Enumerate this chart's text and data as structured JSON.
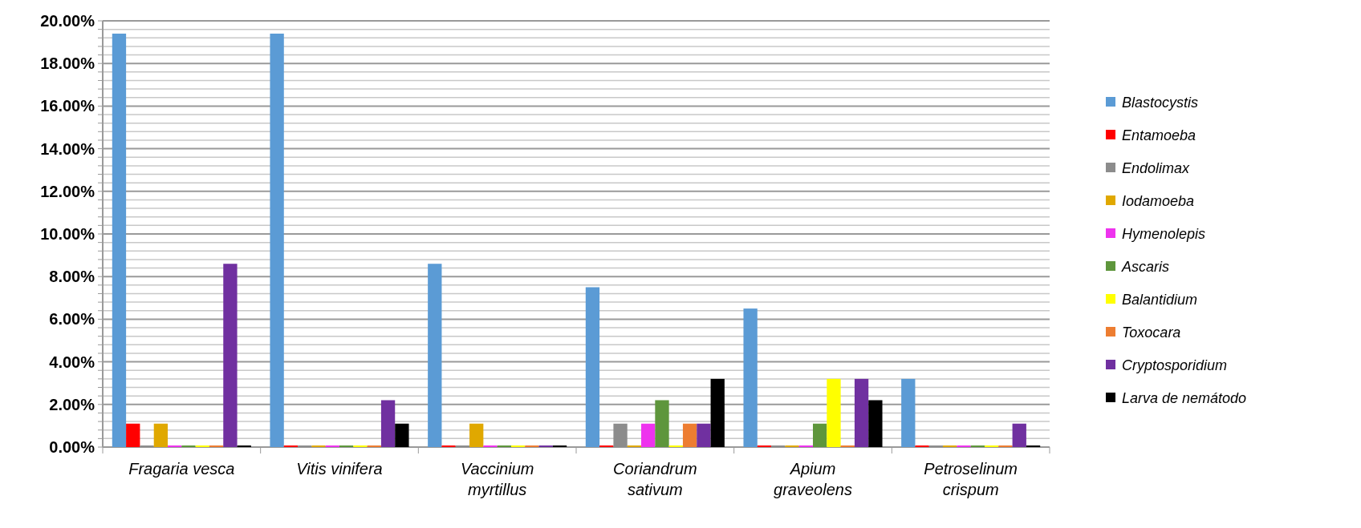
{
  "chart_data": {
    "type": "bar",
    "categories": [
      "Fragaria vesca",
      "Vitis vinifera",
      "Vaccinium myrtillus",
      "Coriandrum sativum",
      "Apium graveolens",
      "Petroselinum crispum"
    ],
    "series": [
      {
        "name": "Blastocystis",
        "color": "#5b9bd5",
        "values": [
          19.4,
          19.4,
          8.6,
          7.5,
          6.5,
          3.2
        ]
      },
      {
        "name": "Entamoeba",
        "color": "#ff0000",
        "values": [
          1.1,
          0,
          0,
          0,
          0,
          0
        ]
      },
      {
        "name": "Endolimax",
        "color": "#8c8c8c",
        "values": [
          0,
          0,
          0,
          1.1,
          0,
          0
        ]
      },
      {
        "name": "Iodamoeba",
        "color": "#e0a800",
        "values": [
          1.1,
          0,
          1.1,
          0,
          0,
          0
        ]
      },
      {
        "name": "Hymenolepis",
        "color": "#ee33ee",
        "values": [
          0,
          0,
          0,
          1.1,
          0,
          0
        ]
      },
      {
        "name": "Ascaris",
        "color": "#5e963c",
        "values": [
          0,
          0,
          0,
          2.2,
          1.1,
          0
        ]
      },
      {
        "name": "Balantidium",
        "color": "#ffff00",
        "values": [
          0,
          0,
          0,
          0,
          3.2,
          0
        ]
      },
      {
        "name": "Toxocara",
        "color": "#ed7d31",
        "values": [
          0,
          0,
          0,
          1.1,
          0,
          0
        ]
      },
      {
        "name": "Cryptosporidium",
        "color": "#7030a0",
        "values": [
          8.6,
          2.2,
          0,
          1.1,
          3.2,
          1.1
        ]
      },
      {
        "name": "Larva de nemátodo",
        "color": "#000000",
        "values": [
          0,
          1.1,
          0,
          3.2,
          2.2,
          0
        ]
      }
    ],
    "ylim": [
      0,
      20
    ],
    "yticks": [
      {
        "value": 0,
        "label": "0.00%"
      },
      {
        "value": 0.4,
        "label": null
      },
      {
        "value": 0.8,
        "label": null
      },
      {
        "value": 1.2,
        "label": null
      },
      {
        "value": 1.6,
        "label": null
      },
      {
        "value": 2,
        "label": "2.00%"
      },
      {
        "value": 2.4,
        "label": null
      },
      {
        "value": 2.8,
        "label": null
      },
      {
        "value": 3.2,
        "label": null
      },
      {
        "value": 3.6,
        "label": null
      },
      {
        "value": 4,
        "label": "4.00%"
      },
      {
        "value": 4.4,
        "label": null
      },
      {
        "value": 4.8,
        "label": null
      },
      {
        "value": 5.2,
        "label": null
      },
      {
        "value": 5.6,
        "label": null
      },
      {
        "value": 6,
        "label": "6.00%"
      },
      {
        "value": 6.4,
        "label": null
      },
      {
        "value": 6.8,
        "label": null
      },
      {
        "value": 7.2,
        "label": null
      },
      {
        "value": 7.6,
        "label": null
      },
      {
        "value": 8,
        "label": "8.00%"
      },
      {
        "value": 8.4,
        "label": null
      },
      {
        "value": 8.8,
        "label": null
      },
      {
        "value": 9.2,
        "label": null
      },
      {
        "value": 9.6,
        "label": null
      },
      {
        "value": 10,
        "label": "10.00%"
      },
      {
        "value": 10.4,
        "label": null
      },
      {
        "value": 10.8,
        "label": null
      },
      {
        "value": 11.2,
        "label": null
      },
      {
        "value": 11.6,
        "label": null
      },
      {
        "value": 12,
        "label": "12.00%"
      },
      {
        "value": 12.4,
        "label": null
      },
      {
        "value": 12.8,
        "label": null
      },
      {
        "value": 13.2,
        "label": null
      },
      {
        "value": 13.6,
        "label": null
      },
      {
        "value": 14,
        "label": "14.00%"
      },
      {
        "value": 14.4,
        "label": null
      },
      {
        "value": 14.8,
        "label": null
      },
      {
        "value": 15.2,
        "label": null
      },
      {
        "value": 15.6,
        "label": null
      },
      {
        "value": 16,
        "label": "16.00%"
      },
      {
        "value": 16.4,
        "label": null
      },
      {
        "value": 16.8,
        "label": null
      },
      {
        "value": 17.2,
        "label": null
      },
      {
        "value": 17.6,
        "label": null
      },
      {
        "value": 18,
        "label": "18.00%"
      },
      {
        "value": 18.4,
        "label": null
      },
      {
        "value": 18.8,
        "label": null
      },
      {
        "value": 19.2,
        "label": null
      },
      {
        "value": 19.6,
        "label": null
      },
      {
        "value": 20,
        "label": "20.00%"
      }
    ],
    "grid": "y",
    "legend": "right"
  }
}
